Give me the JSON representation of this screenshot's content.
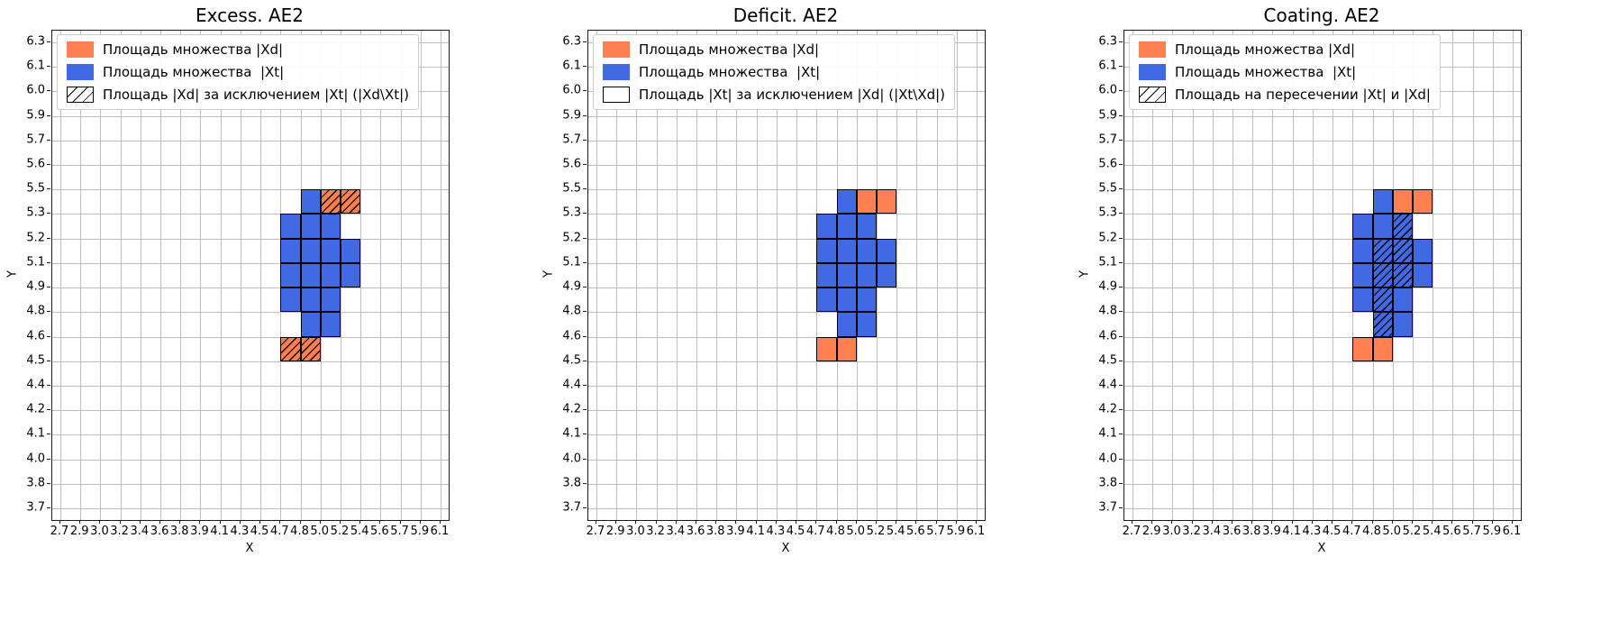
{
  "colors": {
    "xd_fill": "#FF7F50",
    "xt_fill": "#4169E1",
    "grid": "#bdbdbd",
    "spine": "#1a1a1a",
    "cell_edge": "#000000",
    "hatch": "#000000",
    "legend_border": "#cccccc",
    "background": "#ffffff"
  },
  "cell_index_convention": "cells are [x_tick_index, y_tick_index] of the cell's top-left corner; each cell spans to the next tick in each direction",
  "chart_data": [
    {
      "type": "heatmap",
      "title": "Excess. AE2",
      "xlabel": "X",
      "ylabel": "Y",
      "grid": true,
      "legend_position": "upper left",
      "x_ticks": [
        "2.7",
        "2.9",
        "3.0",
        "3.2",
        "3.4",
        "3.6",
        "3.8",
        "3.9",
        "4.1",
        "4.3",
        "4.5",
        "4.7",
        "4.8",
        "5.0",
        "5.2",
        "5.4",
        "5.6",
        "5.7",
        "5.9",
        "6.1"
      ],
      "y_ticks": [
        "6.3",
        "6.1",
        "6.0",
        "5.9",
        "5.7",
        "5.6",
        "5.5",
        "5.3",
        "5.2",
        "5.1",
        "4.9",
        "4.8",
        "4.6",
        "4.5",
        "4.4",
        "4.2",
        "4.1",
        "4.0",
        "3.8",
        "3.7"
      ],
      "legend": [
        {
          "swatch": "orange",
          "label": "Площадь множества |Xd|"
        },
        {
          "swatch": "blue",
          "label": "Площадь множества  |Xt|"
        },
        {
          "swatch": "hatch",
          "label": "Площадь |Xd| за исключением |Xt| (|Xd\\Xt|)"
        }
      ],
      "cells": {
        "xt_blue": [
          [
            12,
            6
          ],
          [
            11,
            7
          ],
          [
            12,
            7
          ],
          [
            13,
            7
          ],
          [
            11,
            8
          ],
          [
            12,
            8
          ],
          [
            13,
            8
          ],
          [
            14,
            8
          ],
          [
            11,
            9
          ],
          [
            12,
            9
          ],
          [
            13,
            9
          ],
          [
            14,
            9
          ],
          [
            11,
            10
          ],
          [
            12,
            10
          ],
          [
            13,
            10
          ],
          [
            12,
            11
          ],
          [
            13,
            11
          ]
        ],
        "xd_orange": [
          [
            13,
            6
          ],
          [
            14,
            6
          ],
          [
            11,
            12
          ],
          [
            12,
            12
          ]
        ],
        "hatched": [
          [
            13,
            6
          ],
          [
            14,
            6
          ],
          [
            11,
            12
          ],
          [
            12,
            12
          ]
        ]
      }
    },
    {
      "type": "heatmap",
      "title": "Deficit. AE2",
      "xlabel": "X",
      "ylabel": "Y",
      "grid": true,
      "legend_position": "upper left",
      "x_ticks": [
        "2.7",
        "2.9",
        "3.0",
        "3.2",
        "3.4",
        "3.6",
        "3.8",
        "3.9",
        "4.1",
        "4.3",
        "4.5",
        "4.7",
        "4.8",
        "5.0",
        "5.2",
        "5.4",
        "5.6",
        "5.7",
        "5.9",
        "6.1"
      ],
      "y_ticks": [
        "6.3",
        "6.1",
        "6.0",
        "5.9",
        "5.7",
        "5.6",
        "5.5",
        "5.3",
        "5.2",
        "5.1",
        "4.9",
        "4.8",
        "4.6",
        "4.5",
        "4.4",
        "4.2",
        "4.1",
        "4.0",
        "3.8",
        "3.7"
      ],
      "legend": [
        {
          "swatch": "orange",
          "label": "Площадь множества |Xd|"
        },
        {
          "swatch": "blue",
          "label": "Площадь множества  |Xt|"
        },
        {
          "swatch": "empty",
          "label": "Площадь |Xt| за исключением |Xd| (|Xt\\Xd|)"
        }
      ],
      "cells": {
        "xt_blue": [
          [
            12,
            6
          ],
          [
            11,
            7
          ],
          [
            12,
            7
          ],
          [
            13,
            7
          ],
          [
            11,
            8
          ],
          [
            12,
            8
          ],
          [
            13,
            8
          ],
          [
            14,
            8
          ],
          [
            11,
            9
          ],
          [
            12,
            9
          ],
          [
            13,
            9
          ],
          [
            14,
            9
          ],
          [
            11,
            10
          ],
          [
            12,
            10
          ],
          [
            13,
            10
          ],
          [
            12,
            11
          ],
          [
            13,
            11
          ]
        ],
        "xd_orange": [
          [
            13,
            6
          ],
          [
            14,
            6
          ],
          [
            11,
            12
          ],
          [
            12,
            12
          ]
        ],
        "hatched": []
      }
    },
    {
      "type": "heatmap",
      "title": "Coating. AE2",
      "xlabel": "X",
      "ylabel": "Y",
      "grid": true,
      "legend_position": "upper left",
      "x_ticks": [
        "2.7",
        "2.9",
        "3.0",
        "3.2",
        "3.4",
        "3.6",
        "3.8",
        "3.9",
        "4.1",
        "4.3",
        "4.5",
        "4.7",
        "4.8",
        "5.0",
        "5.2",
        "5.4",
        "5.6",
        "5.7",
        "5.9",
        "6.1"
      ],
      "y_ticks": [
        "6.3",
        "6.1",
        "6.0",
        "5.9",
        "5.7",
        "5.6",
        "5.5",
        "5.3",
        "5.2",
        "5.1",
        "4.9",
        "4.8",
        "4.6",
        "4.5",
        "4.4",
        "4.2",
        "4.1",
        "4.0",
        "3.8",
        "3.7"
      ],
      "legend": [
        {
          "swatch": "orange",
          "label": "Площадь множества |Xd|"
        },
        {
          "swatch": "blue",
          "label": "Площадь множества  |Xt|"
        },
        {
          "swatch": "hatch",
          "label": "Площадь на пересечении |Xt| и |Xd|"
        }
      ],
      "cells": {
        "xt_blue": [
          [
            12,
            6
          ],
          [
            11,
            7
          ],
          [
            12,
            7
          ],
          [
            13,
            7
          ],
          [
            11,
            8
          ],
          [
            12,
            8
          ],
          [
            13,
            8
          ],
          [
            14,
            8
          ],
          [
            11,
            9
          ],
          [
            12,
            9
          ],
          [
            13,
            9
          ],
          [
            14,
            9
          ],
          [
            11,
            10
          ],
          [
            12,
            10
          ],
          [
            13,
            10
          ],
          [
            12,
            11
          ],
          [
            13,
            11
          ]
        ],
        "xd_orange": [
          [
            13,
            6
          ],
          [
            14,
            6
          ],
          [
            11,
            12
          ],
          [
            12,
            12
          ]
        ],
        "hatched": [
          [
            13,
            7
          ],
          [
            12,
            8
          ],
          [
            13,
            8
          ],
          [
            12,
            9
          ],
          [
            13,
            9
          ],
          [
            12,
            10
          ],
          [
            12,
            11
          ]
        ]
      }
    }
  ]
}
